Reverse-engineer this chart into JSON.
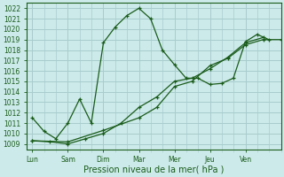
{
  "background_color": "#cceaea",
  "grid_color": "#a8cccc",
  "line_color": "#1a5c1a",
  "xlabel": "Pression niveau de la mer( hPa )",
  "ylim": [
    1008.5,
    1022.5
  ],
  "yticks": [
    1009,
    1010,
    1011,
    1012,
    1013,
    1014,
    1015,
    1016,
    1017,
    1018,
    1019,
    1020,
    1021,
    1022
  ],
  "x_labels": [
    "Lun",
    "Sam",
    "Dim",
    "Mar",
    "Mer",
    "Jeu",
    "Ven"
  ],
  "x_positions": [
    0,
    1,
    2,
    3,
    4,
    5,
    6
  ],
  "xlim": [
    -0.15,
    7.0
  ],
  "series1_x": [
    0.0,
    0.33,
    0.66,
    1.0,
    1.33,
    1.66,
    2.0,
    2.33,
    2.66,
    3.0,
    3.33,
    3.66,
    4.0,
    4.33,
    4.66,
    5.0,
    5.33,
    5.66,
    6.0,
    6.33,
    6.66
  ],
  "series1_y": [
    1011.5,
    1010.2,
    1009.5,
    1011.0,
    1013.3,
    1011.0,
    1018.7,
    1020.2,
    1021.3,
    1022.0,
    1021.0,
    1018.0,
    1016.6,
    1015.3,
    1015.3,
    1014.7,
    1014.8,
    1015.3,
    1018.8,
    1019.5,
    1019.0
  ],
  "series2_x": [
    0.0,
    0.5,
    1.0,
    1.5,
    2.0,
    2.5,
    3.0,
    3.5,
    4.0,
    4.5,
    5.0,
    5.5,
    6.0,
    6.5
  ],
  "series2_y": [
    1009.3,
    1009.2,
    1009.0,
    1009.5,
    1010.0,
    1011.0,
    1012.5,
    1013.5,
    1015.0,
    1015.3,
    1016.2,
    1017.3,
    1018.7,
    1019.2
  ],
  "series3_x": [
    0.0,
    1.0,
    2.0,
    3.0,
    3.5,
    4.0,
    4.5,
    5.0,
    5.5,
    6.0,
    6.5,
    7.0
  ],
  "series3_y": [
    1009.3,
    1009.2,
    1010.3,
    1011.5,
    1012.5,
    1014.5,
    1015.0,
    1016.5,
    1017.2,
    1018.5,
    1019.0,
    1019.0
  ]
}
